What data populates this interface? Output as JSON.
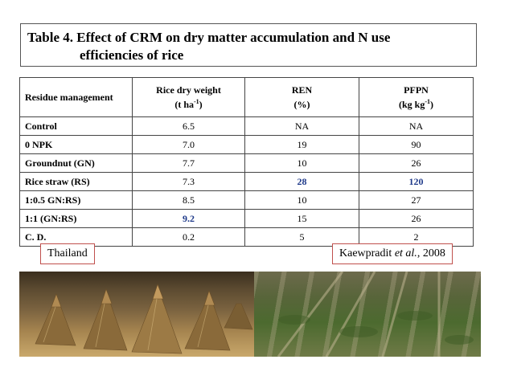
{
  "title": {
    "line1": "Table 4. Effect of CRM on dry matter accumulation and N use",
    "line2": "efficiencies of rice"
  },
  "table": {
    "headers": {
      "residue": "Residue management",
      "dry_weight_name": "Rice dry weight",
      "dry_weight_unit_pre": "(t ha",
      "dry_weight_unit_sup": "-1",
      "dry_weight_unit_post": ")",
      "ren_name": "REN",
      "ren_unit": "(%)",
      "pfpn_name": "PFPN",
      "pfpn_unit_pre": "(kg kg",
      "pfpn_unit_sup": "-1",
      "pfpn_unit_post": ")"
    },
    "rows": [
      {
        "label": "Control",
        "dry_weight": "6.5",
        "ren": "NA",
        "pfpn": "NA"
      },
      {
        "label": "0 NPK",
        "dry_weight": "7.0",
        "ren": "19",
        "pfpn": "90"
      },
      {
        "label": "Groundnut (GN)",
        "dry_weight": "7.7",
        "ren": "10",
        "pfpn": "26"
      },
      {
        "label": "Rice straw (RS)",
        "dry_weight": "7.3",
        "ren": "28",
        "pfpn": "120"
      },
      {
        "label": "1:0.5 GN:RS)",
        "dry_weight": "8.5",
        "ren": "10",
        "pfpn": "27"
      },
      {
        "label": "1:1 (GN:RS)",
        "dry_weight": "9.2",
        "ren": "15",
        "pfpn": "26"
      },
      {
        "label": "C. D.",
        "dry_weight": "0.2",
        "ren": "5",
        "pfpn": "2"
      }
    ]
  },
  "location_label": "Thailand",
  "citation": {
    "author": "Kaewpradit",
    "etal": "et al.",
    "year": ", 2008"
  },
  "colors": {
    "highlight": "#1f3a8a",
    "tag_border": "#c0504d"
  }
}
